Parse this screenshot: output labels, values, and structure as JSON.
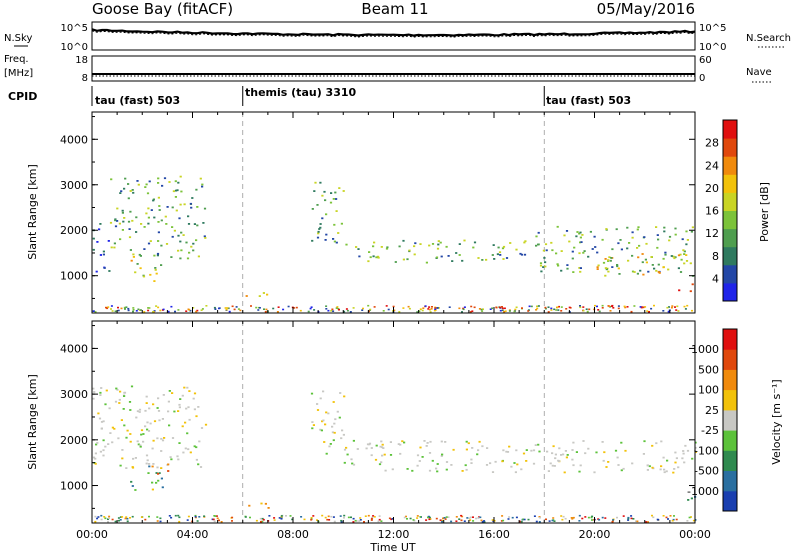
{
  "header": {
    "station": "Goose Bay (fitACF)",
    "beam": "Beam 11",
    "date": "05/May/2016"
  },
  "noise_panel": {
    "left_label": "N.Sky",
    "right_label": "N.Search",
    "left_ticks": [
      "10^5",
      "10^0"
    ],
    "right_ticks": [
      "10^5",
      "10^0"
    ]
  },
  "freq_panel": {
    "left_label_1": "Freq.",
    "left_label_2": "[MHz]",
    "left_ticks": [
      "18",
      "8"
    ],
    "right_label": "Nave",
    "right_ticks": [
      "60",
      "0"
    ]
  },
  "cpid": {
    "label": "CPID",
    "segments": [
      {
        "name": "tau (fast) 503",
        "start_hour": 0
      },
      {
        "name": "themis (tau) 3310",
        "start_hour": 6
      },
      {
        "name": "tau (fast) 503",
        "start_hour": 18
      }
    ]
  },
  "chart_data": [
    {
      "type": "heatmap",
      "name": "power",
      "ylabel": "Slant Range [km]",
      "yticks": [
        "4000",
        "3000",
        "2000",
        "1000"
      ],
      "ylim": [
        180,
        4600
      ],
      "colorbar": {
        "label": "Power [dB]",
        "ticks": [
          "28",
          "24",
          "20",
          "16",
          "12",
          "8",
          "4"
        ],
        "colors": [
          "#1f24e8",
          "#2347a6",
          "#2f7a5f",
          "#4f9e4f",
          "#7cc33a",
          "#c9d424",
          "#f2c20a",
          "#f08a0c",
          "#e0480c",
          "#e00f0f"
        ]
      },
      "echo_regions": [
        {
          "t0": 0.0,
          "t1": 0.7,
          "r0": 1100,
          "r1": 2200,
          "level": "low"
        },
        {
          "t0": 0.7,
          "t1": 4.5,
          "r0": 1400,
          "r1": 3200,
          "level": "mid"
        },
        {
          "t0": 1.5,
          "t1": 2.8,
          "r0": 900,
          "r1": 1500,
          "level": "high"
        },
        {
          "t0": 6.0,
          "t1": 7.0,
          "r0": 450,
          "r1": 650,
          "level": "high"
        },
        {
          "t0": 8.7,
          "t1": 10.0,
          "r0": 1700,
          "r1": 3100,
          "level": "mid"
        },
        {
          "t0": 10.0,
          "t1": 17.5,
          "r0": 1300,
          "r1": 1800,
          "level": "mid"
        },
        {
          "t0": 17.5,
          "t1": 24.0,
          "r0": 1100,
          "r1": 2100,
          "level": "mid"
        },
        {
          "t0": 20.0,
          "t1": 24.0,
          "r0": 1000,
          "r1": 1500,
          "level": "high"
        },
        {
          "t0": 23.3,
          "t1": 24.0,
          "r0": 650,
          "r1": 850,
          "level": "max"
        }
      ]
    },
    {
      "type": "heatmap",
      "name": "velocity",
      "xlabel": "Time UT",
      "ylabel": "Slant Range [km]",
      "yticks": [
        "4000",
        "3000",
        "2000",
        "1000"
      ],
      "ylim": [
        180,
        4600
      ],
      "xticks": [
        "00:00",
        "04:00",
        "08:00",
        "12:00",
        "16:00",
        "20:00",
        "00:00"
      ],
      "xlim": [
        0,
        24
      ],
      "colorbar": {
        "label": "Velocity [m s⁻¹]",
        "ticks": [
          "1000",
          "500",
          "100",
          "25",
          "-25",
          "-100",
          "-500",
          "-1000"
        ],
        "colors": [
          "#1a3fb0",
          "#2a6fa0",
          "#2f8a4f",
          "#5cc23a",
          "#c8c8c4",
          "#f2c20a",
          "#f08a0c",
          "#e0480c",
          "#e00f0f"
        ]
      },
      "echo_regions": [
        {
          "t0": 0.0,
          "t1": 4.5,
          "r0": 1400,
          "r1": 3200,
          "level": "zero"
        },
        {
          "t0": 1.5,
          "t1": 2.8,
          "r0": 900,
          "r1": 1500,
          "level": "toward"
        },
        {
          "t0": 2.3,
          "t1": 3.0,
          "r0": 1200,
          "r1": 1500,
          "level": "away"
        },
        {
          "t0": 6.0,
          "t1": 7.0,
          "r0": 450,
          "r1": 650,
          "level": "away"
        },
        {
          "t0": 8.7,
          "t1": 10.0,
          "r0": 1700,
          "r1": 3100,
          "level": "zero"
        },
        {
          "t0": 10.0,
          "t1": 24.0,
          "r0": 1300,
          "r1": 2000,
          "level": "zero"
        },
        {
          "t0": 23.3,
          "t1": 24.0,
          "r0": 650,
          "r1": 850,
          "level": "toward"
        }
      ]
    }
  ]
}
